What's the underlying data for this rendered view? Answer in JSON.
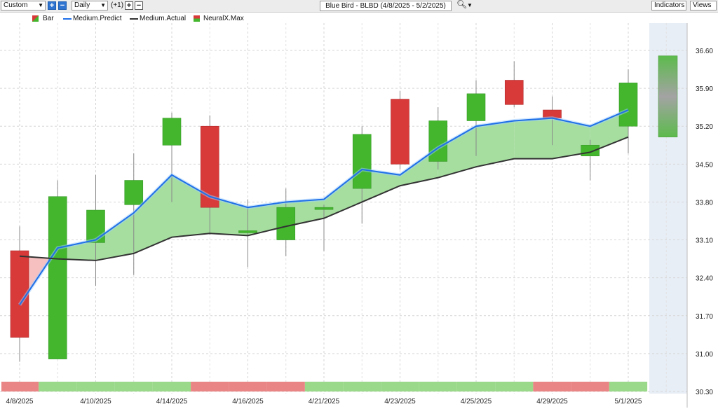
{
  "toolbar": {
    "period_select": "Custom",
    "interval_select": "Daily",
    "offset_label": "(+1)",
    "chart_title": "Blue Bird - BLBD (4/8/2025 - 5/2/2025)",
    "indicators_button": "Indicators",
    "views_button": "Views"
  },
  "legend": [
    {
      "label": "Bar",
      "icon": "bar-icon"
    },
    {
      "label": "Medium.Predict",
      "color": "#1f6fe8"
    },
    {
      "label": "Medium.Actual",
      "color": "#333333"
    },
    {
      "label": "NeuralX.Max",
      "icon": "neuralx-icon"
    }
  ],
  "chart_data": {
    "type": "candlestick",
    "x_labels": [
      "4/8/2025",
      "4/10/2025",
      "4/14/2025",
      "4/16/2025",
      "4/21/2025",
      "4/23/2025",
      "4/25/2025",
      "4/29/2025",
      "5/1/2025"
    ],
    "x_label_positions": [
      0,
      2,
      4,
      6,
      8,
      10,
      12,
      14,
      16
    ],
    "y_ticks": [
      30.3,
      31.0,
      31.7,
      32.4,
      33.1,
      33.8,
      34.5,
      35.2,
      35.9,
      36.6
    ],
    "ylim": [
      30.3,
      36.95
    ],
    "grid": true,
    "bars": [
      {
        "open": 32.9,
        "high": 33.35,
        "low": 30.85,
        "close": 31.3
      },
      {
        "open": 30.9,
        "high": 34.2,
        "low": 30.9,
        "close": 33.9
      },
      {
        "open": 33.05,
        "high": 34.3,
        "low": 32.25,
        "close": 33.65
      },
      {
        "open": 33.75,
        "high": 34.7,
        "low": 32.45,
        "close": 34.2
      },
      {
        "open": 34.85,
        "high": 35.45,
        "low": 33.8,
        "close": 35.35
      },
      {
        "open": 35.2,
        "high": 35.4,
        "low": 33.2,
        "close": 33.7
      },
      {
        "open": 33.27,
        "high": 33.85,
        "low": 32.6,
        "close": 33.27
      },
      {
        "open": 33.1,
        "high": 34.05,
        "low": 32.8,
        "close": 33.7
      },
      {
        "open": 33.7,
        "high": 33.75,
        "low": 32.9,
        "close": 33.7
      },
      {
        "open": 34.05,
        "high": 35.2,
        "low": 33.4,
        "close": 35.05
      },
      {
        "open": 35.7,
        "high": 35.85,
        "low": 34.4,
        "close": 34.5
      },
      {
        "open": 34.55,
        "high": 35.55,
        "low": 34.4,
        "close": 35.3
      },
      {
        "open": 35.3,
        "high": 36.05,
        "low": 34.65,
        "close": 35.8
      },
      {
        "open": 36.05,
        "high": 36.4,
        "low": 35.55,
        "close": 35.6
      },
      {
        "open": 35.5,
        "high": 35.75,
        "low": 34.85,
        "close": 35.35
      },
      {
        "open": 34.65,
        "high": 34.95,
        "low": 34.2,
        "close": 34.85
      },
      {
        "open": 35.2,
        "high": 36.25,
        "low": 34.7,
        "close": 36.0
      }
    ],
    "series": [
      {
        "name": "Medium.Predict",
        "color": "#1f6fe8",
        "values": [
          31.9,
          32.95,
          33.1,
          33.6,
          34.3,
          33.9,
          33.7,
          33.8,
          33.85,
          34.4,
          34.3,
          34.8,
          35.2,
          35.3,
          35.35,
          35.2,
          35.5
        ]
      },
      {
        "name": "Medium.Actual",
        "color": "#333333",
        "values": [
          32.8,
          32.75,
          32.72,
          32.85,
          33.15,
          33.22,
          33.18,
          33.35,
          33.5,
          33.8,
          34.1,
          34.25,
          34.45,
          34.6,
          34.6,
          34.72,
          35.0
        ]
      }
    ],
    "forecast_bar": {
      "top": 36.5,
      "bottom": 35.0
    },
    "neuralx_strip": [
      "red",
      "green",
      "green",
      "green",
      "green",
      "red",
      "red",
      "red",
      "green",
      "green",
      "green",
      "green",
      "green",
      "green",
      "red",
      "red",
      "green"
    ],
    "colors": {
      "up": "#43b62e",
      "down": "#d83a3a",
      "fill_up": "#a6dea0",
      "fill_down": "#f6c0c0",
      "strip_green": "#9ad98a",
      "strip_red": "#e98585",
      "forecast_panel": "#e8eef6"
    }
  }
}
